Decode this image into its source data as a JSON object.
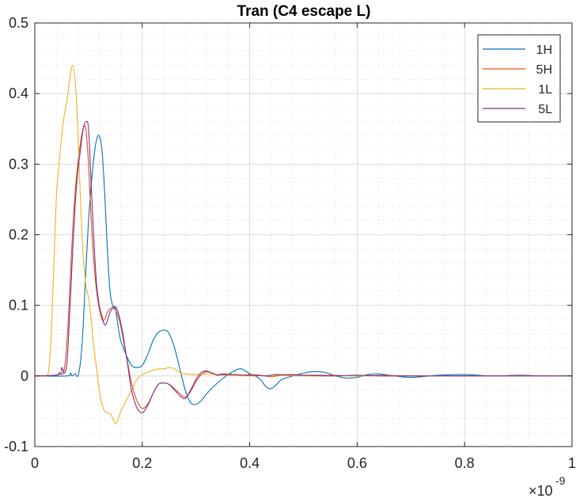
{
  "chart_data": {
    "type": "line",
    "title": "Tran (C4 escape L)",
    "xlabel": "",
    "ylabel": "",
    "xlim": [
      0,
      1e-09
    ],
    "ylim": [
      -0.1,
      0.5
    ],
    "x_ticks": [
      0,
      0.2,
      0.4,
      0.6,
      0.8,
      1
    ],
    "x_tick_labels": [
      "0",
      "0.2",
      "0.4",
      "0.6",
      "0.8",
      "1"
    ],
    "x_exponent_label": "×10",
    "x_exponent": "-9",
    "y_ticks": [
      -0.1,
      0,
      0.1,
      0.2,
      0.3,
      0.4,
      0.5
    ],
    "y_tick_labels": [
      "-0.1",
      "0",
      "0.1",
      "0.2",
      "0.3",
      "0.4",
      "0.5"
    ],
    "grid": true,
    "minor_grid": true,
    "legend_position": "top-right",
    "series": [
      {
        "name": "1H",
        "color": "#0072BD",
        "x": [
          0,
          0.06,
          0.066,
          0.07,
          0.075,
          0.08,
          0.085,
          0.09,
          0.095,
          0.1,
          0.105,
          0.11,
          0.115,
          0.12,
          0.125,
          0.13,
          0.135,
          0.14,
          0.145,
          0.15,
          0.155,
          0.16,
          0.17,
          0.18,
          0.19,
          0.2,
          0.21,
          0.22,
          0.23,
          0.24,
          0.245,
          0.25,
          0.26,
          0.27,
          0.28,
          0.29,
          0.3,
          0.31,
          0.32,
          0.34,
          0.36,
          0.38,
          0.39,
          0.4,
          0.41,
          0.42,
          0.43,
          0.44,
          0.45,
          0.46,
          0.48,
          0.5,
          0.52,
          0.54,
          0.56,
          0.58,
          0.6,
          0.62,
          0.64,
          0.66,
          0.7,
          0.75,
          0.8,
          0.85,
          0.9,
          0.95,
          1.0
        ],
        "y": [
          0,
          0,
          0.004,
          0,
          0.003,
          0,
          0.02,
          0.07,
          0.15,
          0.22,
          0.27,
          0.31,
          0.335,
          0.34,
          0.32,
          0.26,
          0.18,
          0.12,
          0.1,
          0.095,
          0.07,
          0.05,
          0.03,
          0.015,
          0.012,
          0.015,
          0.03,
          0.05,
          0.062,
          0.065,
          0.064,
          0.06,
          0.04,
          0.01,
          -0.02,
          -0.038,
          -0.04,
          -0.035,
          -0.025,
          -0.01,
          0.002,
          0.01,
          0.008,
          0.003,
          0,
          -0.005,
          -0.015,
          -0.018,
          -0.012,
          -0.005,
          0,
          0.004,
          0.006,
          0.005,
          0,
          -0.003,
          -0.002,
          0.002,
          0.003,
          0.001,
          -0.002,
          0.001,
          0.002,
          0,
          0.001,
          0,
          0
        ]
      },
      {
        "name": "5H",
        "color": "#D95319",
        "x": [
          0,
          0.04,
          0.045,
          0.05,
          0.055,
          0.06,
          0.065,
          0.07,
          0.075,
          0.08,
          0.085,
          0.09,
          0.095,
          0.1,
          0.105,
          0.11,
          0.115,
          0.12,
          0.125,
          0.13,
          0.135,
          0.14,
          0.145,
          0.15,
          0.155,
          0.16,
          0.165,
          0.17,
          0.175,
          0.18,
          0.19,
          0.2,
          0.21,
          0.22,
          0.23,
          0.24,
          0.25,
          0.26,
          0.27,
          0.28,
          0.29,
          0.3,
          0.31,
          0.32,
          0.33,
          0.34,
          0.35,
          0.37,
          0.39,
          0.4,
          0.42,
          0.44,
          0.46,
          0.48,
          0.5,
          0.55,
          0.6,
          0.65,
          0.7,
          0.8,
          0.9,
          1.0
        ],
        "y": [
          0,
          0.001,
          0.005,
          0.002,
          0.01,
          0.05,
          0.12,
          0.2,
          0.26,
          0.3,
          0.33,
          0.35,
          0.35,
          0.3,
          0.22,
          0.16,
          0.12,
          0.095,
          0.08,
          0.08,
          0.09,
          0.095,
          0.097,
          0.093,
          0.085,
          0.07,
          0.05,
          0.03,
          0.01,
          -0.01,
          -0.035,
          -0.046,
          -0.04,
          -0.025,
          -0.012,
          -0.01,
          -0.012,
          -0.018,
          -0.025,
          -0.03,
          -0.022,
          -0.008,
          0.002,
          0.006,
          0.004,
          0.002,
          0.003,
          0.002,
          0.001,
          0.002,
          0.001,
          -0.001,
          0.001,
          0.002,
          0.001,
          0.001,
          0,
          0.001,
          0,
          0,
          0,
          0
        ]
      },
      {
        "name": "1L",
        "color": "#EDB120",
        "x": [
          0,
          0.02,
          0.025,
          0.03,
          0.035,
          0.04,
          0.045,
          0.05,
          0.055,
          0.06,
          0.065,
          0.07,
          0.075,
          0.08,
          0.085,
          0.09,
          0.095,
          0.1,
          0.105,
          0.11,
          0.115,
          0.12,
          0.125,
          0.13,
          0.135,
          0.14,
          0.145,
          0.15,
          0.155,
          0.16,
          0.17,
          0.18,
          0.19,
          0.2,
          0.21,
          0.22,
          0.23,
          0.24,
          0.25,
          0.26,
          0.27,
          0.28,
          0.3,
          0.32,
          0.34,
          0.36,
          0.4,
          0.45,
          0.5,
          0.6,
          0.7,
          0.8,
          0.9,
          1.0
        ],
        "y": [
          0,
          0,
          0.005,
          0.05,
          0.15,
          0.25,
          0.3,
          0.34,
          0.37,
          0.39,
          0.42,
          0.44,
          0.42,
          0.35,
          0.25,
          0.17,
          0.13,
          0.11,
          0.08,
          0.04,
          0.01,
          -0.02,
          -0.04,
          -0.05,
          -0.052,
          -0.053,
          -0.06,
          -0.068,
          -0.062,
          -0.05,
          -0.035,
          -0.02,
          -0.005,
          0.002,
          0.005,
          0.008,
          0.01,
          0.01,
          0.012,
          0.01,
          0.005,
          0.003,
          0.002,
          0.003,
          0.002,
          0.001,
          0,
          0.001,
          0,
          0,
          0,
          0,
          0,
          0
        ]
      },
      {
        "name": "5L",
        "color": "#7E2F8E",
        "x": [
          0,
          0.045,
          0.05,
          0.055,
          0.06,
          0.065,
          0.07,
          0.075,
          0.08,
          0.085,
          0.09,
          0.095,
          0.1,
          0.105,
          0.11,
          0.115,
          0.12,
          0.125,
          0.13,
          0.135,
          0.14,
          0.145,
          0.15,
          0.155,
          0.16,
          0.165,
          0.17,
          0.175,
          0.18,
          0.19,
          0.2,
          0.21,
          0.22,
          0.23,
          0.24,
          0.25,
          0.26,
          0.27,
          0.28,
          0.29,
          0.3,
          0.31,
          0.32,
          0.33,
          0.34,
          0.35,
          0.37,
          0.39,
          0.41,
          0.43,
          0.45,
          0.5,
          0.55,
          0.6,
          0.65,
          0.7,
          0.8,
          0.9,
          1.0
        ],
        "y": [
          0,
          0.002,
          0.012,
          0.004,
          0.02,
          0.09,
          0.17,
          0.24,
          0.29,
          0.32,
          0.35,
          0.36,
          0.35,
          0.27,
          0.19,
          0.13,
          0.1,
          0.085,
          0.072,
          0.078,
          0.09,
          0.096,
          0.098,
          0.09,
          0.075,
          0.055,
          0.03,
          0.005,
          -0.02,
          -0.045,
          -0.052,
          -0.042,
          -0.025,
          -0.012,
          -0.01,
          -0.012,
          -0.02,
          -0.028,
          -0.032,
          -0.02,
          -0.005,
          0.005,
          0.007,
          0.004,
          0.001,
          0.002,
          0.002,
          0.001,
          0.001,
          0,
          0.002,
          0.001,
          0,
          0.001,
          0,
          0,
          0,
          0,
          0
        ]
      }
    ]
  }
}
